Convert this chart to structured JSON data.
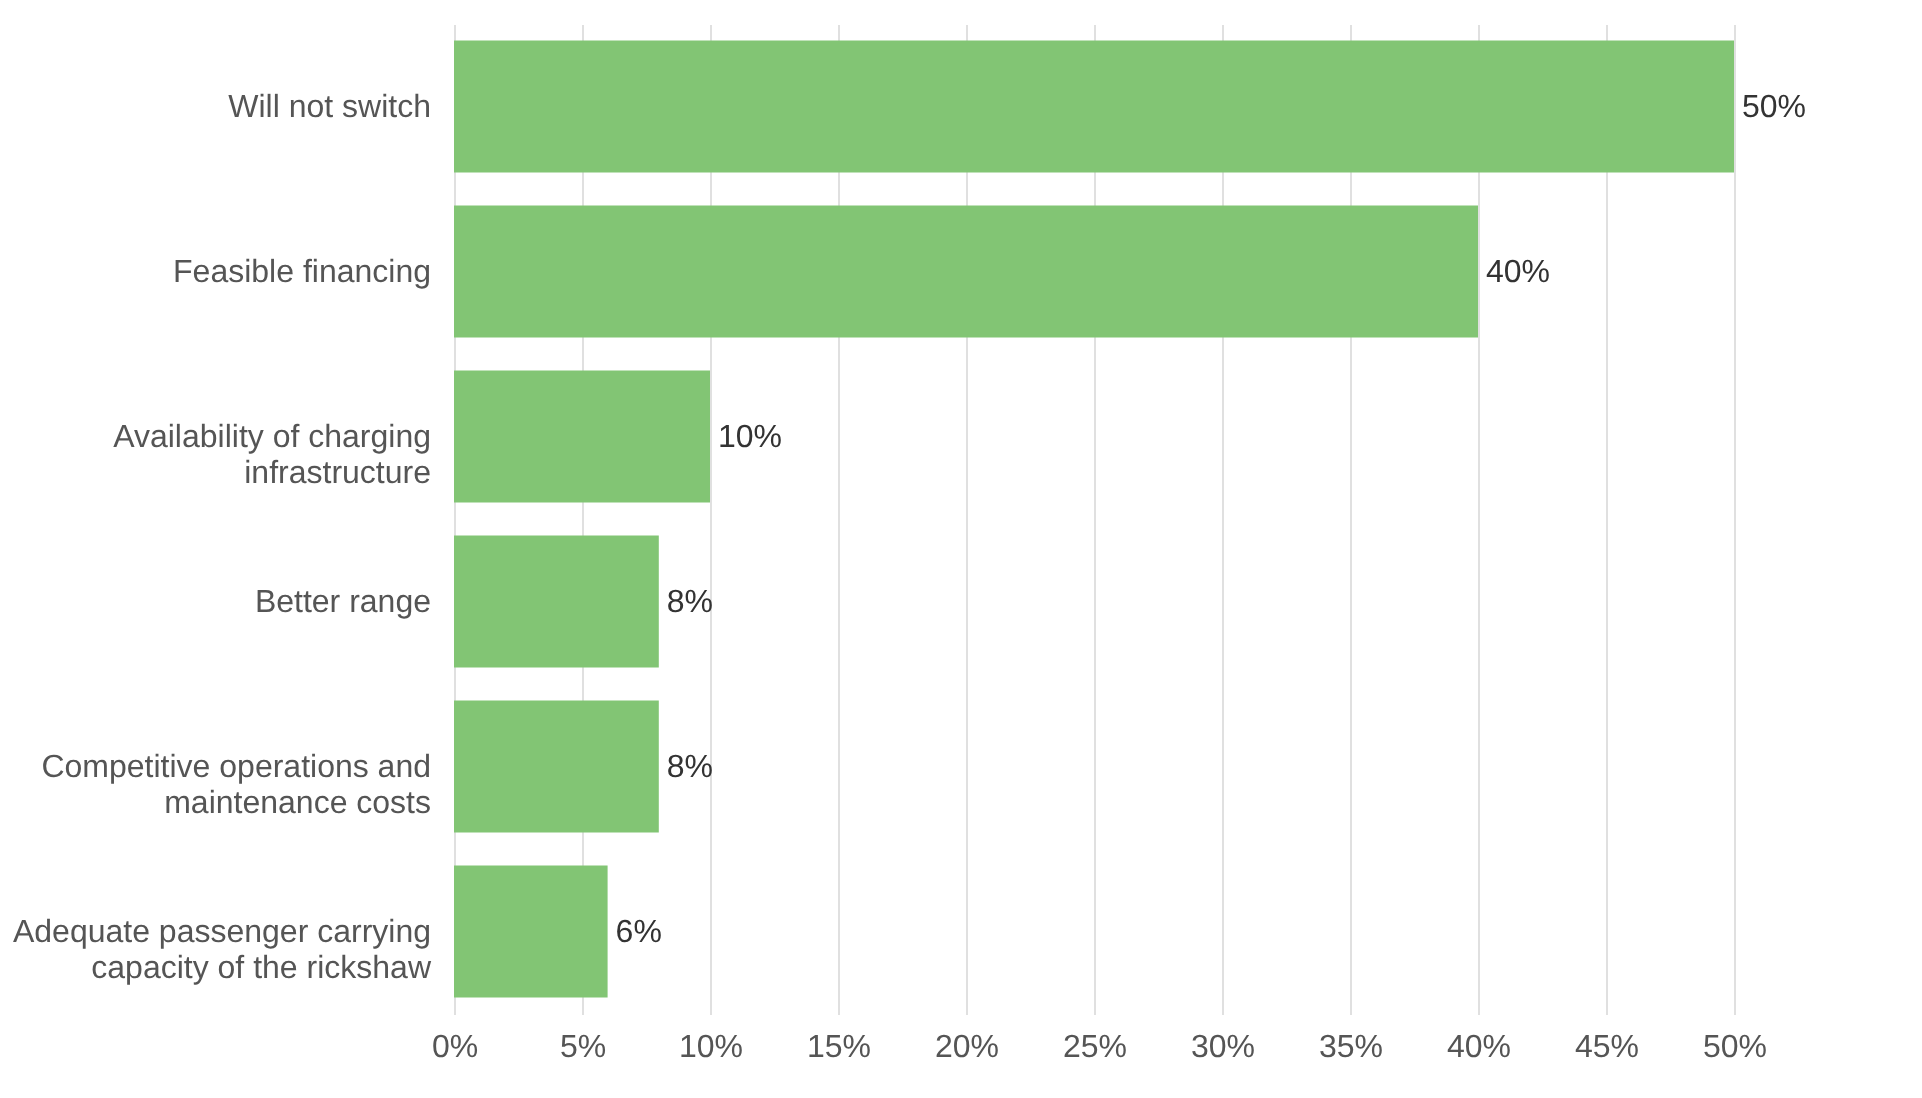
{
  "chart_data": {
    "type": "bar",
    "orientation": "horizontal",
    "categories": [
      "Will not switch",
      "Feasible financing",
      "Availability of charging infrastructure",
      "Better range",
      "Competitive operations and maintenance costs",
      "Adequate passenger carrying capacity of the rickshaw"
    ],
    "values": [
      50,
      40,
      10,
      8,
      8,
      6
    ],
    "value_labels": [
      "50%",
      "40%",
      "10%",
      "8%",
      "8%",
      "6%"
    ],
    "color": "#82c574",
    "xlim": [
      0,
      50
    ],
    "xticks": [
      {
        "value": 0,
        "label": "0%"
      },
      {
        "value": 5,
        "label": "5%"
      },
      {
        "value": 10,
        "label": "10%"
      },
      {
        "value": 15,
        "label": "15%"
      },
      {
        "value": 20,
        "label": "20%"
      },
      {
        "value": 25,
        "label": "25%"
      },
      {
        "value": 30,
        "label": "30%"
      },
      {
        "value": 35,
        "label": "35%"
      },
      {
        "value": 40,
        "label": "40%"
      },
      {
        "value": 45,
        "label": "45%"
      },
      {
        "value": 50,
        "label": "50%"
      }
    ],
    "grid": "x"
  }
}
